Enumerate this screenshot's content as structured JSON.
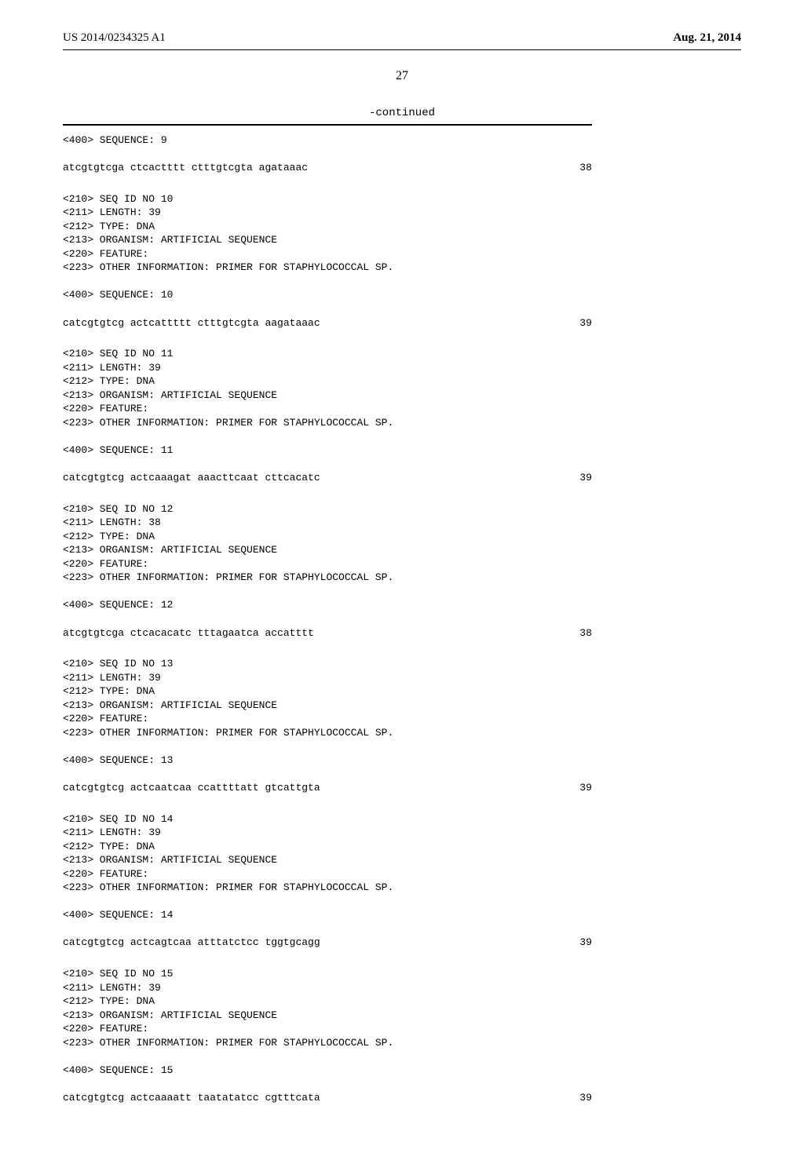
{
  "header": {
    "pub_number": "US 2014/0234325 A1",
    "pub_date": "Aug. 21, 2014"
  },
  "page_number": "27",
  "continued_label": "-continued",
  "blocks": [
    {
      "lines": [
        "<400> SEQUENCE: 9"
      ],
      "sequence": "atcgtgtcga ctcactttt ctttgtcgta agataaac",
      "sequence_length": "38"
    },
    {
      "lines": [
        "<210> SEQ ID NO 10",
        "<211> LENGTH: 39",
        "<212> TYPE: DNA",
        "<213> ORGANISM: ARTIFICIAL SEQUENCE",
        "<220> FEATURE:",
        "<223> OTHER INFORMATION: PRIMER FOR STAPHYLOCOCCAL SP.",
        "",
        "<400> SEQUENCE: 10"
      ],
      "sequence": "catcgtgtcg actcattttt ctttgtcgta aagataaac",
      "sequence_length": "39"
    },
    {
      "lines": [
        "<210> SEQ ID NO 11",
        "<211> LENGTH: 39",
        "<212> TYPE: DNA",
        "<213> ORGANISM: ARTIFICIAL SEQUENCE",
        "<220> FEATURE:",
        "<223> OTHER INFORMATION: PRIMER FOR STAPHYLOCOCCAL SP.",
        "",
        "<400> SEQUENCE: 11"
      ],
      "sequence": "catcgtgtcg actcaaagat aaacttcaat cttcacatc",
      "sequence_length": "39"
    },
    {
      "lines": [
        "<210> SEQ ID NO 12",
        "<211> LENGTH: 38",
        "<212> TYPE: DNA",
        "<213> ORGANISM: ARTIFICIAL SEQUENCE",
        "<220> FEATURE:",
        "<223> OTHER INFORMATION: PRIMER FOR STAPHYLOCOCCAL SP.",
        "",
        "<400> SEQUENCE: 12"
      ],
      "sequence": "atcgtgtcga ctcacacatc tttagaatca accatttt",
      "sequence_length": "38"
    },
    {
      "lines": [
        "<210> SEQ ID NO 13",
        "<211> LENGTH: 39",
        "<212> TYPE: DNA",
        "<213> ORGANISM: ARTIFICIAL SEQUENCE",
        "<220> FEATURE:",
        "<223> OTHER INFORMATION: PRIMER FOR STAPHYLOCOCCAL SP.",
        "",
        "<400> SEQUENCE: 13"
      ],
      "sequence": "catcgtgtcg actcaatcaa ccattttatt gtcattgta",
      "sequence_length": "39"
    },
    {
      "lines": [
        "<210> SEQ ID NO 14",
        "<211> LENGTH: 39",
        "<212> TYPE: DNA",
        "<213> ORGANISM: ARTIFICIAL SEQUENCE",
        "<220> FEATURE:",
        "<223> OTHER INFORMATION: PRIMER FOR STAPHYLOCOCCAL SP.",
        "",
        "<400> SEQUENCE: 14"
      ],
      "sequence": "catcgtgtcg actcagtcaa atttatctcc tggtgcagg",
      "sequence_length": "39"
    },
    {
      "lines": [
        "<210> SEQ ID NO 15",
        "<211> LENGTH: 39",
        "<212> TYPE: DNA",
        "<213> ORGANISM: ARTIFICIAL SEQUENCE",
        "<220> FEATURE:",
        "<223> OTHER INFORMATION: PRIMER FOR STAPHYLOCOCCAL SP.",
        "",
        "<400> SEQUENCE: 15"
      ],
      "sequence": "catcgtgtcg actcaaaatt taatatatcc cgtttcata",
      "sequence_length": "39"
    }
  ]
}
